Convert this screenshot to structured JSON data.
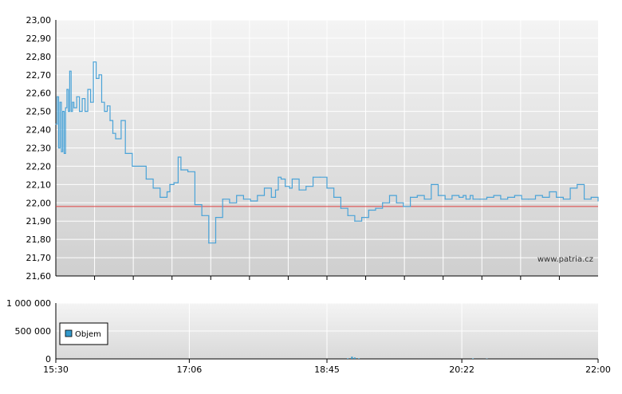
{
  "chart_data": [
    {
      "type": "line",
      "title": "",
      "xlabel": "",
      "ylabel": "",
      "ylim": [
        21.6,
        23.0
      ],
      "y_ticks": [
        "23,00",
        "22,90",
        "22,80",
        "22,70",
        "22,60",
        "22,50",
        "22,40",
        "22,30",
        "22,20",
        "22,10",
        "22,00",
        "21,90",
        "21,80",
        "21,70",
        "21,60"
      ],
      "reference_line": {
        "value": 21.98,
        "color": "#e04040"
      },
      "watermark": "www.patria.cz",
      "line_color": "#4aa3d8",
      "grid": true,
      "series": [
        {
          "x": [
            "15:30",
            "15:31",
            "15:32",
            "15:33",
            "15:34",
            "15:35",
            "15:36",
            "15:37",
            "15:38",
            "15:39",
            "15:40",
            "15:41",
            "15:42",
            "15:43",
            "15:45",
            "15:47",
            "15:49",
            "15:51",
            "15:53",
            "15:55",
            "15:57",
            "15:59",
            "16:01",
            "16:03",
            "16:05",
            "16:07",
            "16:09",
            "16:11",
            "16:13",
            "16:15",
            "16:17",
            "16:20",
            "16:25",
            "16:30",
            "16:35",
            "16:40",
            "16:45",
            "16:50",
            "16:52",
            "16:55",
            "16:58",
            "17:00",
            "17:05",
            "17:10",
            "17:15",
            "17:20",
            "17:25",
            "17:30",
            "17:35",
            "17:40",
            "17:45",
            "17:50",
            "17:55",
            "18:00",
            "18:05",
            "18:08",
            "18:10",
            "18:12",
            "18:15",
            "18:18",
            "18:20",
            "18:25",
            "18:30",
            "18:35",
            "18:40",
            "18:45",
            "18:50",
            "18:55",
            "19:00",
            "19:05",
            "19:10",
            "19:15",
            "19:20",
            "19:25",
            "19:30",
            "19:35",
            "19:40",
            "19:45",
            "19:50",
            "19:55",
            "20:00",
            "20:05",
            "20:10",
            "20:15",
            "20:20",
            "20:23",
            "20:25",
            "20:28",
            "20:30",
            "20:35",
            "20:40",
            "20:45",
            "20:50",
            "20:55",
            "21:00",
            "21:05",
            "21:10",
            "21:15",
            "21:20",
            "21:25",
            "21:30",
            "21:35",
            "21:40",
            "21:45",
            "21:50",
            "21:55",
            "22:00"
          ],
          "y": [
            22.43,
            22.58,
            22.3,
            22.55,
            22.28,
            22.5,
            22.27,
            22.52,
            22.62,
            22.5,
            22.72,
            22.5,
            22.55,
            22.52,
            22.58,
            22.5,
            22.57,
            22.5,
            22.62,
            22.55,
            22.77,
            22.68,
            22.7,
            22.55,
            22.5,
            22.53,
            22.45,
            22.38,
            22.35,
            22.35,
            22.45,
            22.27,
            22.2,
            22.2,
            22.13,
            22.08,
            22.03,
            22.06,
            22.1,
            22.11,
            22.25,
            22.18,
            22.17,
            21.99,
            21.93,
            21.78,
            21.92,
            22.02,
            22.0,
            22.04,
            22.02,
            22.01,
            22.04,
            22.08,
            22.03,
            22.07,
            22.14,
            22.13,
            22.09,
            22.08,
            22.13,
            22.07,
            22.09,
            22.14,
            22.14,
            22.08,
            22.03,
            21.97,
            21.93,
            21.9,
            21.92,
            21.96,
            21.97,
            22.0,
            22.04,
            22.0,
            21.98,
            22.03,
            22.04,
            22.02,
            22.1,
            22.04,
            22.02,
            22.04,
            22.03,
            22.04,
            22.02,
            22.04,
            22.02,
            22.02,
            22.03,
            22.04,
            22.02,
            22.03,
            22.04,
            22.02,
            22.02,
            22.04,
            22.03,
            22.06,
            22.03,
            22.02,
            22.08,
            22.1,
            22.02,
            22.03,
            22.01
          ]
        }
      ]
    },
    {
      "type": "area",
      "title": "",
      "xlabel": "",
      "ylabel": "",
      "ylim": [
        0,
        1000000
      ],
      "y_ticks": [
        "1 000 000",
        "500 000",
        "0"
      ],
      "x_ticks": [
        "15:30",
        "17:06",
        "18:45",
        "20:22",
        "22:00"
      ],
      "legend": {
        "placement": "bottom-left",
        "entries": [
          "Objem"
        ]
      },
      "fill_color": "#3399cc",
      "grid": true,
      "series": [
        {
          "name": "Objem",
          "x": [
            "19:00",
            "19:03",
            "19:05",
            "19:08",
            "20:30",
            "20:40"
          ],
          "y": [
            10000,
            40000,
            25000,
            10000,
            8000,
            5000
          ]
        }
      ]
    }
  ]
}
